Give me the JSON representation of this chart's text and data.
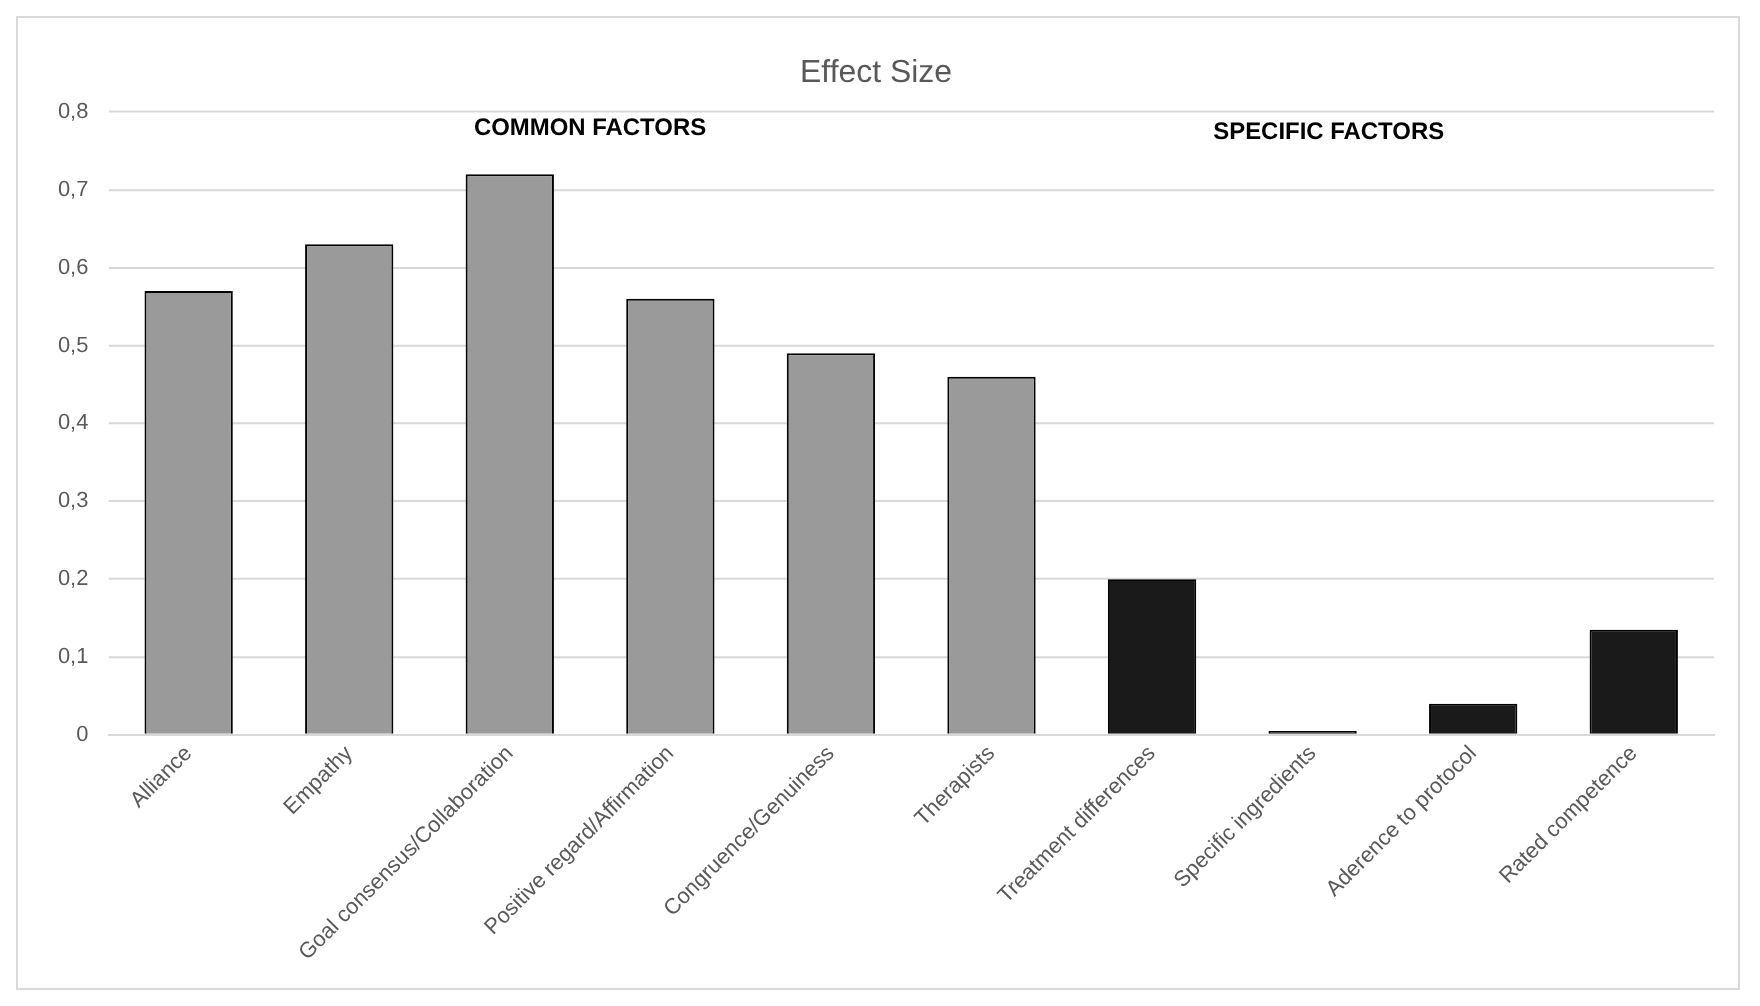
{
  "chart_data": {
    "type": "bar",
    "title": "Effect Size",
    "categories": [
      "Alliance",
      "Empathy",
      "Goal consensus/Collaboration",
      "Positive regard/Affirmation",
      "Congruence/Genuiness",
      "Therapists",
      "Treatment differences",
      "Specific ingredients",
      "Aderence to protocol",
      "Rated competence"
    ],
    "values": [
      0.57,
      0.63,
      0.72,
      0.56,
      0.49,
      0.46,
      0.2,
      0.005,
      0.04,
      0.135
    ],
    "colors": [
      "#9a9a9a",
      "#9a9a9a",
      "#9a9a9a",
      "#9a9a9a",
      "#9a9a9a",
      "#9a9a9a",
      "#1a1a1a",
      "#1a1a1a",
      "#1a1a1a",
      "#1a1a1a"
    ],
    "ylim": [
      0,
      0.8
    ],
    "yticks": [
      0,
      {
        "value": 0.1,
        "label": "0,1"
      },
      {
        "value": 0.2,
        "label": "0,2"
      },
      {
        "value": 0.3,
        "label": "0,3"
      },
      {
        "value": 0.4,
        "label": "0,4"
      },
      {
        "value": 0.5,
        "label": "0,5"
      },
      {
        "value": 0.6,
        "label": "0,6"
      },
      {
        "value": 0.7,
        "label": "0,7"
      },
      {
        "value": 0.8,
        "label": "0,8"
      }
    ],
    "grid": "y",
    "annotations": [
      "COMMON FACTORS",
      "SPECIFIC FACTORS"
    ]
  }
}
